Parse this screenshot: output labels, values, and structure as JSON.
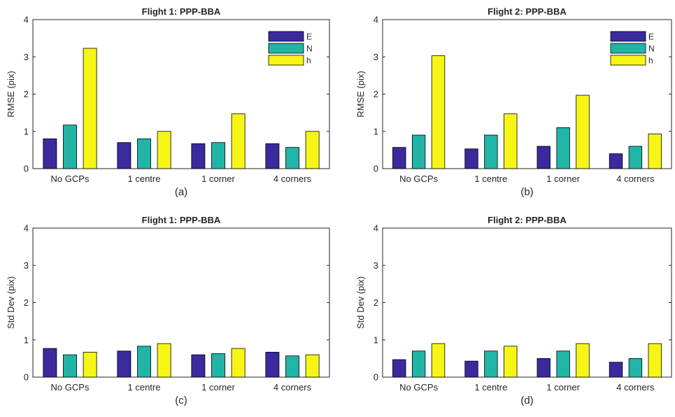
{
  "colors": {
    "E": "#3a2a9e",
    "N": "#21b5a8",
    "h": "#f7f516"
  },
  "chart_data": [
    {
      "type": "bar",
      "title": "Flight 1: PPP-BBA",
      "ylabel": "RMSE (pix)",
      "sublabel": "(a)",
      "categories": [
        "No GCPs",
        "1 centre",
        "1 corner",
        "4 corners"
      ],
      "ylim": [
        0,
        4
      ],
      "yticks": [
        "0",
        "1",
        "2",
        "3",
        "4"
      ],
      "legend": "top-right",
      "series": [
        {
          "name": "E",
          "values": [
            0.8,
            0.7,
            0.67,
            0.67
          ]
        },
        {
          "name": "N",
          "values": [
            1.17,
            0.8,
            0.7,
            0.57
          ]
        },
        {
          "name": "h",
          "values": [
            3.23,
            1.0,
            1.47,
            1.0
          ]
        }
      ]
    },
    {
      "type": "bar",
      "title": "Flight 2: PPP-BBA",
      "ylabel": "RMSE (pix)",
      "sublabel": "(b)",
      "categories": [
        "No GCPs",
        "1 centre",
        "1 corner",
        "4 corners"
      ],
      "ylim": [
        0,
        4
      ],
      "yticks": [
        "0",
        "1",
        "2",
        "3",
        "4"
      ],
      "legend": "top-right",
      "series": [
        {
          "name": "E",
          "values": [
            0.57,
            0.53,
            0.6,
            0.4
          ]
        },
        {
          "name": "N",
          "values": [
            0.9,
            0.9,
            1.1,
            0.6
          ]
        },
        {
          "name": "h",
          "values": [
            3.03,
            1.47,
            1.97,
            0.93
          ]
        }
      ]
    },
    {
      "type": "bar",
      "title": "Flight 1: PPP-BBA",
      "ylabel": "Std Dev (pix)",
      "sublabel": "(c)",
      "categories": [
        "No GCPs",
        "1 centre",
        "1 corner",
        "4 corners"
      ],
      "ylim": [
        0,
        4
      ],
      "yticks": [
        "0",
        "1",
        "2",
        "3",
        "4"
      ],
      "series": [
        {
          "values": [
            0.77,
            0.7,
            0.6,
            0.67
          ]
        },
        {
          "values": [
            0.6,
            0.83,
            0.63,
            0.57
          ]
        },
        {
          "values": [
            0.67,
            0.9,
            0.77,
            0.6
          ]
        }
      ]
    },
    {
      "type": "bar",
      "title": "Flight 2: PPP-BBA",
      "ylabel": "Std Dev (pix)",
      "sublabel": "(d)",
      "categories": [
        "No GCPs",
        "1 centre",
        "1 corner",
        "4 corners"
      ],
      "ylim": [
        0,
        4
      ],
      "yticks": [
        "0",
        "1",
        "2",
        "3",
        "4"
      ],
      "series": [
        {
          "values": [
            0.47,
            0.43,
            0.5,
            0.4
          ]
        },
        {
          "values": [
            0.7,
            0.7,
            0.7,
            0.5
          ]
        },
        {
          "values": [
            0.9,
            0.83,
            0.9,
            0.9
          ]
        }
      ]
    }
  ]
}
